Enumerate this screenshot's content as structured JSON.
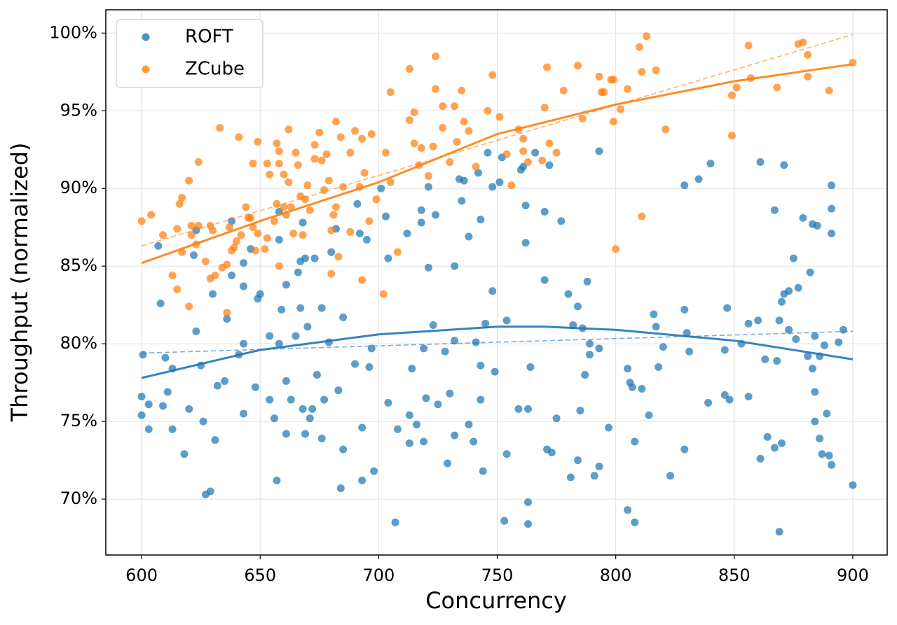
{
  "chart_data": {
    "type": "scatter",
    "xlabel": "Concurrency",
    "ylabel": "Throughput (normalized)",
    "xlim": [
      584.9,
      914.5
    ],
    "ylim": [
      66.4,
      101.5
    ],
    "xticks": [
      600,
      650,
      700,
      750,
      800,
      850,
      900
    ],
    "yticks": [
      {
        "value": 70,
        "label": "70%"
      },
      {
        "value": 75,
        "label": "75%"
      },
      {
        "value": 80,
        "label": "80%"
      },
      {
        "value": 85,
        "label": "85%"
      },
      {
        "value": 90,
        "label": "90%"
      },
      {
        "value": 95,
        "label": "95%"
      },
      {
        "value": 100,
        "label": "100%"
      }
    ],
    "grid": true,
    "legend": "upper left",
    "series": [
      {
        "name": "ROFT",
        "color": "#1f77b4",
        "x": [
          600,
          600.6,
          600,
          603,
          603,
          607,
          608,
          609,
          610,
          611,
          613,
          613,
          618,
          620,
          622,
          623,
          623,
          625,
          626,
          627,
          629,
          630,
          631,
          632,
          635,
          636,
          638,
          638,
          641,
          643,
          643,
          643,
          643,
          646,
          648,
          649,
          650,
          654,
          654,
          656,
          657,
          658,
          658,
          658,
          659,
          661,
          661,
          661,
          663,
          665,
          666,
          667,
          667,
          668,
          668,
          669,
          669,
          670,
          671,
          672,
          673,
          674,
          676,
          676,
          677,
          679,
          680,
          682,
          683,
          684,
          685,
          685,
          690,
          691,
          692,
          693,
          693,
          695,
          696,
          697,
          698,
          701,
          703,
          704,
          704,
          707,
          708,
          712,
          713,
          713,
          714,
          716,
          718,
          718,
          719,
          719,
          720,
          721,
          721,
          723,
          724,
          725,
          728,
          729,
          730,
          732,
          732,
          732,
          734,
          735,
          736,
          738,
          738,
          740,
          741,
          742,
          743,
          743,
          743,
          744,
          745,
          746,
          748,
          748,
          749,
          751,
          752,
          753,
          754,
          754,
          759,
          760,
          761,
          762,
          762,
          763,
          763,
          763,
          764,
          766,
          770,
          770,
          771,
          772,
          773,
          775,
          777,
          780,
          781,
          782,
          784,
          784,
          785,
          786,
          787,
          788,
          789,
          789,
          791,
          793,
          793,
          793,
          797,
          805,
          805,
          806,
          807,
          808,
          808,
          811,
          814,
          816,
          817,
          818,
          820,
          823,
          829,
          829,
          829,
          830,
          831,
          835,
          839,
          840,
          846,
          846,
          847,
          848,
          853,
          856,
          856,
          860,
          861,
          861,
          863,
          864,
          867,
          867,
          868,
          869,
          869,
          870,
          870,
          871,
          871,
          873,
          873,
          875,
          876,
          877,
          879,
          881,
          882,
          883,
          883,
          884,
          884,
          884,
          885,
          886,
          886,
          887,
          888,
          889,
          890,
          891,
          891,
          891,
          891,
          894,
          896,
          900
        ],
        "values": [
          76.6,
          79.3,
          75.4,
          76.1,
          74.5,
          86.3,
          82.6,
          76.0,
          79.1,
          76.9,
          78.4,
          74.5,
          72.9,
          75.8,
          85.7,
          80.8,
          87.3,
          78.6,
          75.0,
          70.3,
          70.5,
          83.2,
          73.8,
          77.3,
          77.6,
          81.6,
          84.4,
          87.9,
          79.3,
          80.0,
          83.7,
          85.2,
          75.5,
          86.1,
          77.2,
          82.9,
          83.2,
          80.5,
          76.4,
          75.2,
          71.2,
          80.0,
          86.7,
          88.5,
          82.2,
          83.8,
          77.6,
          74.2,
          76.4,
          80.5,
          84.6,
          82.3,
          85.3,
          75.8,
          87.8,
          74.2,
          85.5,
          81.1,
          75.2,
          75.8,
          85.5,
          78.0,
          82.3,
          73.9,
          76.4,
          80.1,
          85.9,
          87.4,
          77.0,
          70.7,
          81.7,
          73.2,
          78.7,
          89.0,
          87.1,
          74.6,
          71.2,
          86.7,
          78.5,
          79.7,
          71.8,
          90.0,
          88.2,
          85.5,
          76.2,
          68.5,
          74.5,
          87.1,
          75.4,
          73.6,
          78.4,
          74.8,
          87.8,
          88.6,
          79.7,
          73.7,
          76.5,
          84.9,
          90.1,
          81.2,
          88.3,
          76.1,
          79.5,
          72.3,
          76.8,
          74.1,
          85.0,
          80.2,
          90.6,
          89.2,
          90.5,
          86.9,
          74.8,
          73.7,
          80.1,
          91.0,
          88.0,
          76.4,
          78.6,
          71.8,
          81.3,
          92.3,
          90.1,
          83.4,
          78.2,
          90.4,
          92.0,
          68.6,
          81.5,
          72.9,
          75.8,
          91.2,
          91.4,
          88.9,
          86.5,
          69.8,
          75.8,
          68.4,
          78.5,
          92.3,
          84.1,
          88.5,
          73.2,
          91.5,
          73.0,
          75.2,
          87.9,
          83.2,
          71.4,
          81.2,
          82.4,
          72.5,
          75.7,
          81.0,
          78.0,
          84.0,
          80.0,
          79.3,
          71.5,
          72.1,
          79.7,
          92.4,
          74.6,
          69.3,
          78.4,
          77.5,
          77.2,
          73.7,
          68.5,
          77.1,
          75.4,
          81.9,
          81.1,
          78.5,
          79.8,
          71.5,
          90.2,
          82.2,
          73.2,
          80.7,
          79.5,
          90.6,
          76.2,
          91.6,
          79.6,
          76.7,
          82.3,
          76.4,
          80.0,
          76.6,
          81.3,
          81.5,
          72.6,
          91.7,
          79.0,
          74.0,
          88.6,
          73.3,
          78.9,
          81.5,
          67.9,
          82.7,
          73.6,
          91.5,
          83.2,
          83.4,
          80.9,
          85.5,
          80.3,
          83.6,
          88.1,
          79.2,
          84.6,
          87.7,
          78.4,
          80.5,
          76.9,
          75.0,
          87.6,
          79.2,
          73.9,
          72.9,
          79.9,
          75.5,
          72.8,
          87.1,
          90.2,
          88.7,
          72.2,
          80.1,
          80.9,
          70.9
        ],
        "fit": {
          "x": [
            600,
            650,
            700,
            750,
            770,
            800,
            850,
            900
          ],
          "values": [
            77.8,
            79.6,
            80.6,
            81.1,
            81.1,
            80.9,
            80.2,
            79.0
          ]
        },
        "trend": {
          "x": [
            600,
            900
          ],
          "values": [
            79.4,
            80.8
          ]
        }
      },
      {
        "name": "ZCube",
        "color": "#ff7f0e",
        "x": [
          600,
          604,
          609,
          613,
          615,
          615,
          616,
          617,
          617,
          620,
          620,
          621,
          621,
          623,
          624,
          624,
          627,
          629,
          629,
          630,
          631,
          633,
          634,
          636,
          636,
          637,
          638,
          639,
          640,
          641,
          642,
          644,
          645,
          646,
          647,
          647,
          648,
          649,
          649,
          652,
          653,
          653,
          654,
          656,
          657,
          657,
          658,
          658,
          658,
          660,
          660,
          661,
          662,
          662,
          663,
          664,
          665,
          666,
          667,
          668,
          669,
          670,
          671,
          673,
          673,
          675,
          676,
          677,
          678,
          679,
          680,
          680,
          681,
          682,
          682,
          683,
          684,
          685,
          688,
          688,
          690,
          692,
          693,
          693,
          694,
          696,
          697,
          699,
          702,
          703,
          705,
          705,
          708,
          713,
          713,
          715,
          715,
          717,
          718,
          721,
          723,
          724,
          724,
          727,
          727,
          730,
          732,
          733,
          735,
          736,
          738,
          741,
          746,
          748,
          751,
          754,
          756,
          759,
          761,
          761,
          763,
          769,
          770,
          771,
          772,
          775,
          778,
          784,
          786,
          793,
          794,
          795,
          798,
          799,
          799,
          800,
          802,
          805,
          810,
          811,
          811,
          813,
          817,
          821,
          849,
          849,
          851,
          856,
          857,
          868,
          877,
          879,
          881,
          881,
          890,
          900
        ],
        "values": [
          87.9,
          88.3,
          87.0,
          84.4,
          83.5,
          87.4,
          89.0,
          89.4,
          85.9,
          82.4,
          90.5,
          87.0,
          87.6,
          86.4,
          91.7,
          87.6,
          85.3,
          87.6,
          84.2,
          87.3,
          84.4,
          93.9,
          84.9,
          82.0,
          85.1,
          87.5,
          86.0,
          86.2,
          86.6,
          93.3,
          87.0,
          88.8,
          88.1,
          88.1,
          91.6,
          87.5,
          86.0,
          87.1,
          93.0,
          86.1,
          91.6,
          86.8,
          90.9,
          87.9,
          92.9,
          89.0,
          91.6,
          92.4,
          85.0,
          90.9,
          88.8,
          88.3,
          93.8,
          90.4,
          88.8,
          87.1,
          92.3,
          91.5,
          89.5,
          87.0,
          89.3,
          90.2,
          88.6,
          91.9,
          92.8,
          93.6,
          91.8,
          89.9,
          92.2,
          90.5,
          87.3,
          84.5,
          88.3,
          94.3,
          88.8,
          85.6,
          93.3,
          90.1,
          92.3,
          87.2,
          93.7,
          90.1,
          84.1,
          93.2,
          91.0,
          87.9,
          93.5,
          89.3,
          83.2,
          92.3,
          96.2,
          90.4,
          85.9,
          94.4,
          97.7,
          92.9,
          94.9,
          91.5,
          92.6,
          90.8,
          92.7,
          98.5,
          96.4,
          93.9,
          95.3,
          91.7,
          95.3,
          93.0,
          96.3,
          94.3,
          93.7,
          91.4,
          95.0,
          97.3,
          94.6,
          92.2,
          90.2,
          93.8,
          93.2,
          92.4,
          91.7,
          91.8,
          95.2,
          97.8,
          92.9,
          92.3,
          96.3,
          97.9,
          94.5,
          97.2,
          96.2,
          96.2,
          97.0,
          97.0,
          94.3,
          86.1,
          95.1,
          96.4,
          99.1,
          97.5,
          88.2,
          99.8,
          97.6,
          93.8,
          93.4,
          96.0,
          96.5,
          99.2,
          97.1,
          96.5,
          99.3,
          99.4,
          98.6,
          97.2,
          96.3,
          98.1
        ],
        "fit": {
          "x": [
            600,
            650,
            700,
            750,
            800,
            850,
            900
          ],
          "values": [
            85.2,
            87.9,
            90.4,
            93.5,
            95.4,
            96.9,
            98.0
          ]
        },
        "trend": {
          "x": [
            600,
            900
          ],
          "values": [
            86.3,
            99.9
          ]
        }
      }
    ]
  }
}
